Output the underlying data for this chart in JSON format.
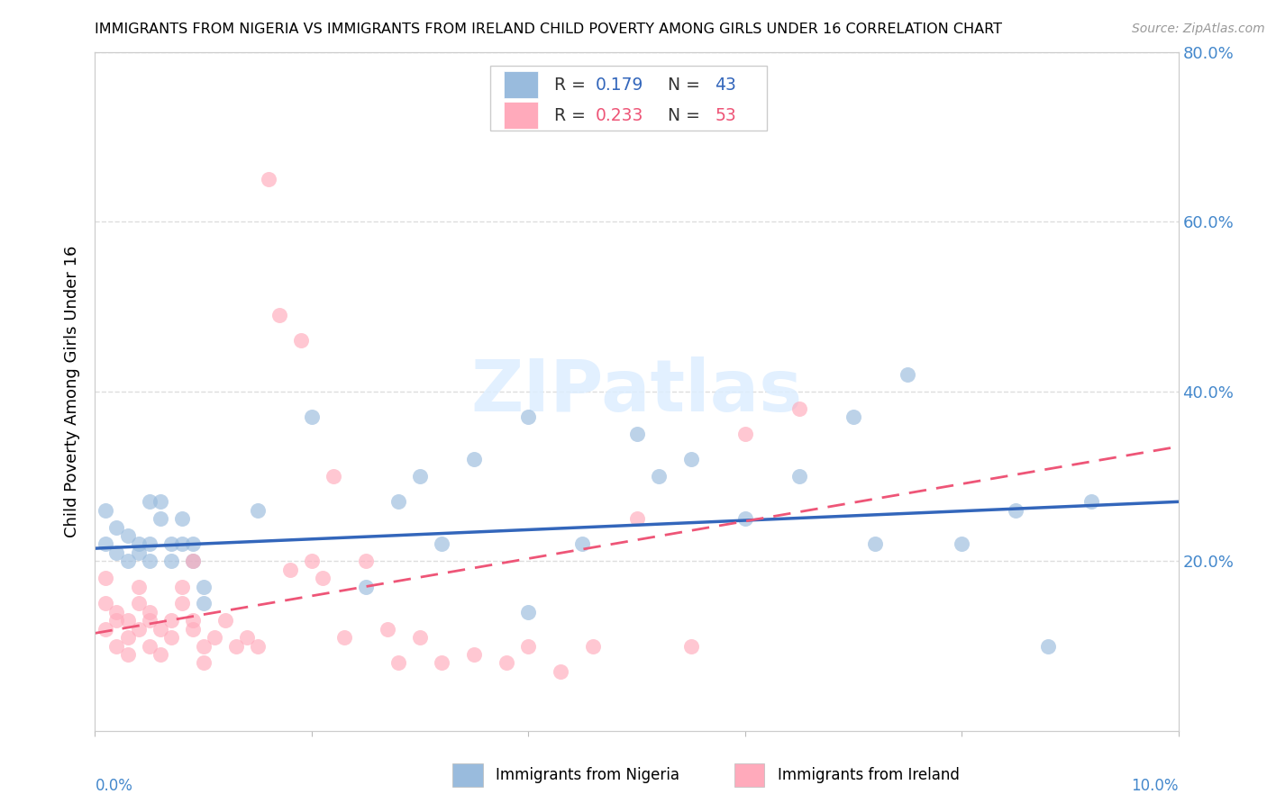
{
  "title": "IMMIGRANTS FROM NIGERIA VS IMMIGRANTS FROM IRELAND CHILD POVERTY AMONG GIRLS UNDER 16 CORRELATION CHART",
  "source": "Source: ZipAtlas.com",
  "ylabel": "Child Poverty Among Girls Under 16",
  "nigeria_R": 0.179,
  "nigeria_N": 43,
  "ireland_R": 0.233,
  "ireland_N": 53,
  "nigeria_color": "#99BBDD",
  "ireland_color": "#FFAABB",
  "nigeria_line_color": "#3366BB",
  "ireland_line_color": "#EE5577",
  "nigeria_line_b0": 0.215,
  "nigeria_line_b1": 0.55,
  "ireland_line_b0": 0.115,
  "ireland_line_b1": 2.2,
  "xlim": [
    0.0,
    0.1
  ],
  "ylim": [
    0.0,
    0.8
  ],
  "yticks": [
    0.2,
    0.4,
    0.6,
    0.8
  ],
  "ytick_labels": [
    "20.0%",
    "40.0%",
    "60.0%",
    "80.0%"
  ],
  "nigeria_x": [
    0.001,
    0.001,
    0.002,
    0.002,
    0.003,
    0.003,
    0.004,
    0.004,
    0.005,
    0.005,
    0.005,
    0.006,
    0.006,
    0.007,
    0.007,
    0.008,
    0.008,
    0.009,
    0.009,
    0.01,
    0.01,
    0.015,
    0.02,
    0.025,
    0.028,
    0.03,
    0.032,
    0.035,
    0.04,
    0.04,
    0.045,
    0.05,
    0.052,
    0.055,
    0.06,
    0.065,
    0.07,
    0.072,
    0.075,
    0.08,
    0.085,
    0.088,
    0.092
  ],
  "nigeria_y": [
    0.26,
    0.22,
    0.24,
    0.21,
    0.23,
    0.2,
    0.22,
    0.21,
    0.2,
    0.22,
    0.27,
    0.27,
    0.25,
    0.22,
    0.2,
    0.22,
    0.25,
    0.22,
    0.2,
    0.17,
    0.15,
    0.26,
    0.37,
    0.17,
    0.27,
    0.3,
    0.22,
    0.32,
    0.37,
    0.14,
    0.22,
    0.35,
    0.3,
    0.32,
    0.25,
    0.3,
    0.37,
    0.22,
    0.42,
    0.22,
    0.26,
    0.1,
    0.27
  ],
  "ireland_x": [
    0.001,
    0.001,
    0.001,
    0.002,
    0.002,
    0.002,
    0.003,
    0.003,
    0.003,
    0.004,
    0.004,
    0.004,
    0.005,
    0.005,
    0.005,
    0.006,
    0.006,
    0.007,
    0.007,
    0.008,
    0.008,
    0.009,
    0.009,
    0.009,
    0.01,
    0.01,
    0.011,
    0.012,
    0.013,
    0.014,
    0.015,
    0.016,
    0.017,
    0.018,
    0.019,
    0.02,
    0.021,
    0.022,
    0.023,
    0.025,
    0.027,
    0.028,
    0.03,
    0.032,
    0.035,
    0.038,
    0.04,
    0.043,
    0.046,
    0.05,
    0.055,
    0.06,
    0.065
  ],
  "ireland_y": [
    0.18,
    0.15,
    0.12,
    0.14,
    0.1,
    0.13,
    0.11,
    0.13,
    0.09,
    0.12,
    0.15,
    0.17,
    0.13,
    0.1,
    0.14,
    0.09,
    0.12,
    0.13,
    0.11,
    0.17,
    0.15,
    0.2,
    0.12,
    0.13,
    0.1,
    0.08,
    0.11,
    0.13,
    0.1,
    0.11,
    0.1,
    0.65,
    0.49,
    0.19,
    0.46,
    0.2,
    0.18,
    0.3,
    0.11,
    0.2,
    0.12,
    0.08,
    0.11,
    0.08,
    0.09,
    0.08,
    0.1,
    0.07,
    0.1,
    0.25,
    0.1,
    0.35,
    0.38
  ]
}
